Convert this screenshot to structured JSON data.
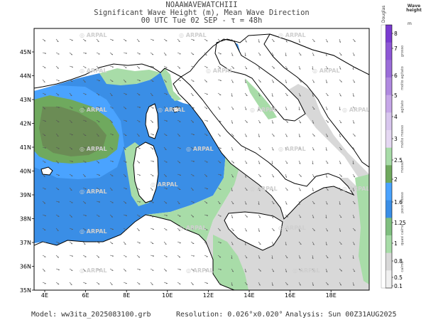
{
  "header": {
    "line1": "NOAAWAVEWATCHIII",
    "line2": "Significant Wave Height (m), Mean Wave Direction",
    "line3": "00 UTC Tue 02 SEP  -  τ = 48h"
  },
  "watermark": "ARPAL",
  "map": {
    "lat_labels": [
      "45N",
      "44N",
      "43N",
      "42N",
      "41N",
      "40N",
      "39N",
      "38N",
      "37N",
      "36N",
      "35N"
    ],
    "lon_labels": [
      "4E",
      "6E",
      "8E",
      "10E",
      "12E",
      "14E",
      "16E",
      "18E"
    ]
  },
  "legend": {
    "header_left": "Douglas",
    "header_right": "Wave height",
    "unit": "m",
    "values": [
      "8",
      "7",
      "6",
      "5",
      "4",
      "3",
      "2.5",
      "2",
      "1.6",
      "1.25",
      "1",
      "0.8",
      "0.5",
      "0.1"
    ],
    "douglas": [
      "grosso",
      "molto agitato",
      "agitato",
      "molto mosso",
      "mosso",
      "poco mosso",
      "quasi calmo",
      "calmo"
    ],
    "colors": {
      "gray": "#d8d8d8",
      "light_green": "#a8dca8",
      "blue": "#3a8ee6",
      "light_blue": "#4aa3ff",
      "green": "#5e9e52",
      "dark_green": "#6b8c55",
      "purple": "#7a3bd1",
      "land": "#ffffff"
    }
  },
  "footer": {
    "model": "Model: ww3ita_2025083100.grb",
    "resolution": "Resolution: 0.026°x0.020°",
    "analysis": "Analysis: Sun 00Z31AUG2025"
  }
}
